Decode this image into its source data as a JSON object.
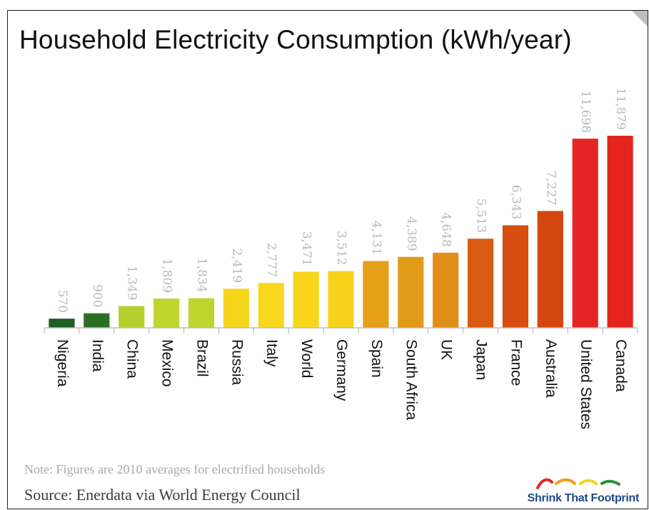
{
  "chart_data": {
    "type": "bar",
    "title": "Household Electricity Consumption (kWh/year)",
    "categories": [
      "Nigeria",
      "India",
      "China",
      "Mexico",
      "Brazil",
      "Russia",
      "Italy",
      "World",
      "Germany",
      "Spain",
      "South Africa",
      "UK",
      "Japan",
      "France",
      "Australia",
      "United States",
      "Canada"
    ],
    "values": [
      570,
      900,
      1349,
      1809,
      1834,
      2419,
      2777,
      3471,
      3512,
      4131,
      4389,
      4648,
      5513,
      6343,
      7227,
      11698,
      11879
    ],
    "value_labels": [
      "570",
      "900",
      "1,349",
      "1,809",
      "1,834",
      "2,419",
      "2,777",
      "3,471",
      "3,512",
      "4,131",
      "4,389",
      "4,648",
      "5,513",
      "6,343",
      "7,227",
      "11,698",
      "11,879"
    ],
    "colors": [
      "#1f5f24",
      "#2b6f25",
      "#b5cf2d",
      "#bfd42f",
      "#c0d430",
      "#f4d51b",
      "#f8d81e",
      "#f9d61c",
      "#f8d21a",
      "#e5a01a",
      "#e09c19",
      "#e18f18",
      "#d95a12",
      "#d84d12",
      "#d3470f",
      "#e52524",
      "#e5231f"
    ],
    "ylim": [
      0,
      12500
    ],
    "grid": false,
    "legend": "none",
    "xlabel": "",
    "ylabel": ""
  },
  "footer": {
    "note": "Note: Figures are 2010 averages for electrified households",
    "source": "Source:  Enerdata via World Energy Council"
  },
  "logo": {
    "text": "Shrink That Footprint",
    "icon": "footprints-icon",
    "colors": [
      "#e52524",
      "#f39c12",
      "#f4d51b",
      "#2e8b3a",
      "#1c4a86"
    ]
  }
}
